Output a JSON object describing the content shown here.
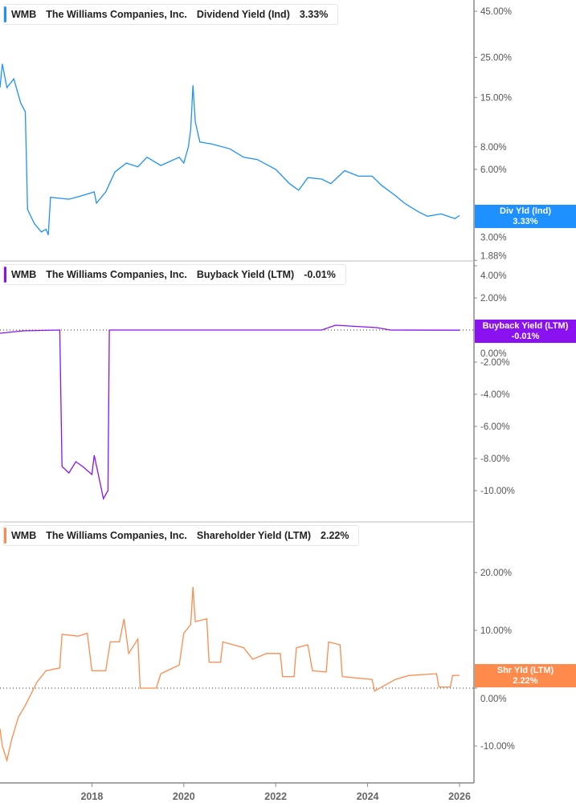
{
  "chart_data": [
    {
      "type": "line",
      "scale": "log",
      "ticker": "WMB",
      "company": "The Williams Companies, Inc.",
      "metric": "Dividend Yield (Ind)",
      "last_value": "3.33%",
      "tag_label": "Div Yld (Ind)",
      "color": "#1e90ff",
      "yticks": [
        "45.00%",
        "25.00%",
        "15.00%",
        "8.00%",
        "6.00%",
        "3.00%",
        "1.88%"
      ],
      "ytick_values": [
        45,
        25,
        15,
        8,
        6,
        3,
        1.88
      ],
      "ylim": [
        1.88,
        45
      ],
      "points": [
        [
          2016.0,
          17
        ],
        [
          2016.05,
          23
        ],
        [
          2016.15,
          17
        ],
        [
          2016.3,
          19
        ],
        [
          2016.45,
          14
        ],
        [
          2016.55,
          12.5
        ],
        [
          2016.6,
          3.6
        ],
        [
          2016.75,
          3.0
        ],
        [
          2016.9,
          2.7
        ],
        [
          2017.0,
          2.8
        ],
        [
          2017.05,
          2.6
        ],
        [
          2017.1,
          4.2
        ],
        [
          2017.5,
          4.1
        ],
        [
          2017.8,
          4.3
        ],
        [
          2018.05,
          4.5
        ],
        [
          2018.1,
          3.9
        ],
        [
          2018.3,
          4.5
        ],
        [
          2018.5,
          5.8
        ],
        [
          2018.75,
          6.5
        ],
        [
          2019.0,
          6.2
        ],
        [
          2019.2,
          7.0
        ],
        [
          2019.5,
          6.3
        ],
        [
          2019.9,
          7.0
        ],
        [
          2020.0,
          6.5
        ],
        [
          2020.1,
          8.0
        ],
        [
          2020.15,
          10
        ],
        [
          2020.2,
          17.5
        ],
        [
          2020.25,
          11
        ],
        [
          2020.35,
          8.5
        ],
        [
          2020.6,
          8.3
        ],
        [
          2021.0,
          7.8
        ],
        [
          2021.3,
          7.0
        ],
        [
          2021.6,
          6.8
        ],
        [
          2022.0,
          6.0
        ],
        [
          2022.3,
          5.0
        ],
        [
          2022.5,
          4.6
        ],
        [
          2022.7,
          5.4
        ],
        [
          2023.0,
          5.3
        ],
        [
          2023.2,
          5.0
        ],
        [
          2023.5,
          5.9
        ],
        [
          2023.8,
          5.5
        ],
        [
          2024.1,
          5.5
        ],
        [
          2024.3,
          4.9
        ],
        [
          2024.6,
          4.3
        ],
        [
          2024.8,
          3.9
        ],
        [
          2025.1,
          3.5
        ],
        [
          2025.3,
          3.3
        ],
        [
          2025.6,
          3.4
        ],
        [
          2025.9,
          3.2
        ],
        [
          2026.0,
          3.33
        ]
      ]
    },
    {
      "type": "line",
      "scale": "linear",
      "ticker": "WMB",
      "company": "The Williams Companies, Inc.",
      "metric": "Buyback Yield (LTM)",
      "last_value": "-0.01%",
      "tag_label": "Buyback Yield (LTM)",
      "color": "#8a12f0",
      "yticks": [
        "4.00%",
        "2.00%",
        "0.00%",
        "-2.00%",
        "-4.00%",
        "-6.00%",
        "-8.00%",
        "-10.00%"
      ],
      "ytick_values": [
        4,
        2,
        0,
        -2,
        -4,
        -6,
        -8,
        -10
      ],
      "ylim": [
        -11,
        4
      ],
      "points": [
        [
          2016.0,
          -0.2
        ],
        [
          2016.5,
          -0.05
        ],
        [
          2017.3,
          0
        ],
        [
          2017.35,
          -8.5
        ],
        [
          2017.5,
          -8.9
        ],
        [
          2017.65,
          -8.2
        ],
        [
          2017.8,
          -8.5
        ],
        [
          2018.0,
          -9.0
        ],
        [
          2018.05,
          -7.8
        ],
        [
          2018.2,
          -9.8
        ],
        [
          2018.25,
          -10.5
        ],
        [
          2018.35,
          -10
        ],
        [
          2018.38,
          0
        ],
        [
          2023.0,
          0
        ],
        [
          2023.3,
          0.3
        ],
        [
          2024.2,
          0.15
        ],
        [
          2024.5,
          0
        ],
        [
          2026.0,
          -0.01
        ]
      ]
    },
    {
      "type": "line",
      "scale": "linear",
      "ticker": "WMB",
      "company": "The Williams Companies, Inc.",
      "metric": "Shareholder Yield (LTM)",
      "last_value": "2.22%",
      "tag_label": "Shr Yld (LTM)",
      "color": "#ff8a4c",
      "yticks": [
        "20.00%",
        "10.00%",
        "0.00%",
        "-10.00%"
      ],
      "ytick_values": [
        20,
        10,
        0,
        -10
      ],
      "ylim": [
        -15,
        25
      ],
      "points": [
        [
          2016.0,
          -7
        ],
        [
          2016.05,
          -10
        ],
        [
          2016.15,
          -12.5
        ],
        [
          2016.25,
          -9
        ],
        [
          2016.4,
          -5
        ],
        [
          2016.55,
          -3
        ],
        [
          2016.8,
          1
        ],
        [
          2017.0,
          3
        ],
        [
          2017.3,
          3.5
        ],
        [
          2017.35,
          9.3
        ],
        [
          2017.7,
          9
        ],
        [
          2017.9,
          9.5
        ],
        [
          2018.0,
          3
        ],
        [
          2018.3,
          3
        ],
        [
          2018.4,
          8
        ],
        [
          2018.6,
          8
        ],
        [
          2018.7,
          12
        ],
        [
          2018.8,
          6
        ],
        [
          2019.0,
          8.5
        ],
        [
          2019.05,
          0
        ],
        [
          2019.4,
          0
        ],
        [
          2019.5,
          2.5
        ],
        [
          2019.9,
          4
        ],
        [
          2020.0,
          9.5
        ],
        [
          2020.15,
          11
        ],
        [
          2020.2,
          17.5
        ],
        [
          2020.25,
          11.5
        ],
        [
          2020.5,
          12
        ],
        [
          2020.55,
          4.5
        ],
        [
          2020.8,
          4.5
        ],
        [
          2020.85,
          8
        ],
        [
          2021.3,
          7
        ],
        [
          2021.5,
          5
        ],
        [
          2021.8,
          6
        ],
        [
          2022.1,
          6
        ],
        [
          2022.15,
          2
        ],
        [
          2022.4,
          2
        ],
        [
          2022.45,
          7
        ],
        [
          2022.7,
          7.5
        ],
        [
          2022.8,
          3
        ],
        [
          2023.1,
          2.8
        ],
        [
          2023.15,
          8
        ],
        [
          2023.4,
          7.5
        ],
        [
          2023.45,
          2
        ],
        [
          2024.1,
          1.5
        ],
        [
          2024.15,
          -0.5
        ],
        [
          2024.6,
          1.5
        ],
        [
          2024.9,
          2.2
        ],
        [
          2025.5,
          2.5
        ],
        [
          2025.55,
          0.2
        ],
        [
          2025.8,
          0.2
        ],
        [
          2025.85,
          2.2
        ],
        [
          2026.0,
          2.22
        ]
      ]
    }
  ],
  "xaxis": {
    "ticks": [
      "2018",
      "2020",
      "2022",
      "2024",
      "2026"
    ],
    "tick_values": [
      2018,
      2020,
      2022,
      2024,
      2026
    ]
  }
}
